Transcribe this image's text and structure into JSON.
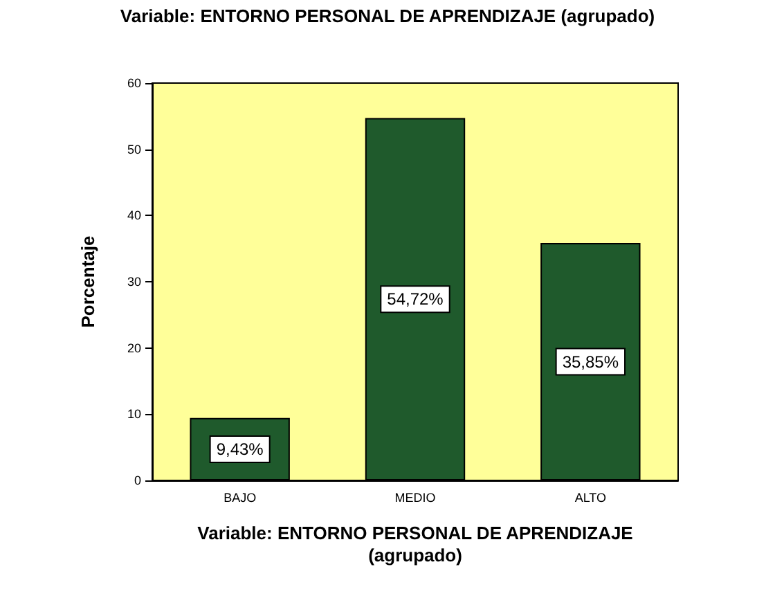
{
  "chart_data": {
    "type": "bar",
    "title": "Variable: ENTORNO PERSONAL DE APRENDIZAJE (agrupado)",
    "xlabel": "Variable: ENTORNO PERSONAL DE APRENDIZAJE\n(agrupado)",
    "ylabel": "Porcentaje",
    "categories": [
      "BAJO",
      "MEDIO",
      "ALTO"
    ],
    "values": [
      9.43,
      54.72,
      35.85
    ],
    "value_labels": [
      "9,43%",
      "54,72%",
      "35,85%"
    ],
    "color": "#1f5a2c",
    "ylim": [
      0,
      60
    ],
    "yticks": [
      0,
      10,
      20,
      30,
      40,
      50,
      60
    ],
    "grid": false
  }
}
